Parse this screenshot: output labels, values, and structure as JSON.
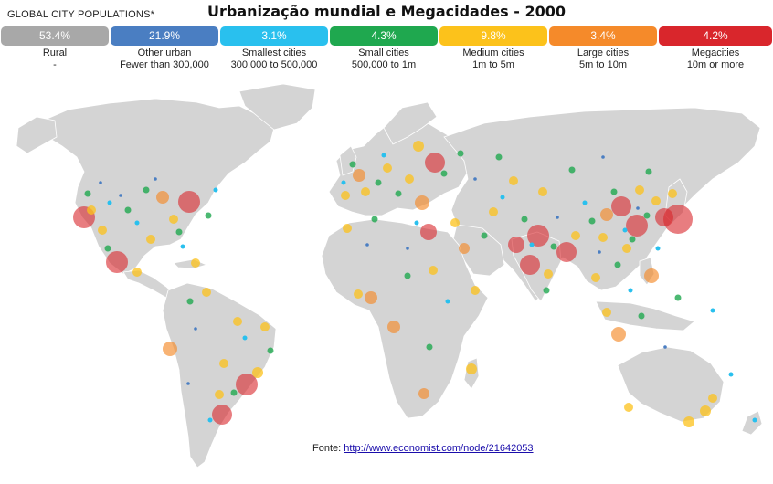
{
  "header": {
    "left_label": "GLOBAL CITY POPULATIONS*",
    "title": "Urbanização mundial e Megacidades - 2000"
  },
  "legend": [
    {
      "pct": "53.4%",
      "label": "Rural",
      "sub": "-",
      "color": "#a8a8a8"
    },
    {
      "pct": "21.9%",
      "label": "Other urban",
      "sub": "Fewer than 300,000",
      "color": "#4a7ec2"
    },
    {
      "pct": "3.1%",
      "label": "Smallest cities",
      "sub": "300,000 to 500,000",
      "color": "#29c0ee"
    },
    {
      "pct": "4.3%",
      "label": "Small cities",
      "sub": "500,000 to 1m",
      "color": "#1fa84f"
    },
    {
      "pct": "9.8%",
      "label": "Medium cities",
      "sub": "1m to 5m",
      "color": "#fcc21b"
    },
    {
      "pct": "3.4%",
      "label": "Large cities",
      "sub": "5m to 10m",
      "color": "#f58a2a"
    },
    {
      "pct": "4.2%",
      "label": "Megacities",
      "sub": "10m or more",
      "color": "#d9262c"
    }
  ],
  "source": {
    "prefix": "Fonte: ",
    "link": "http://www.economist.com/node/21642053"
  }
}
